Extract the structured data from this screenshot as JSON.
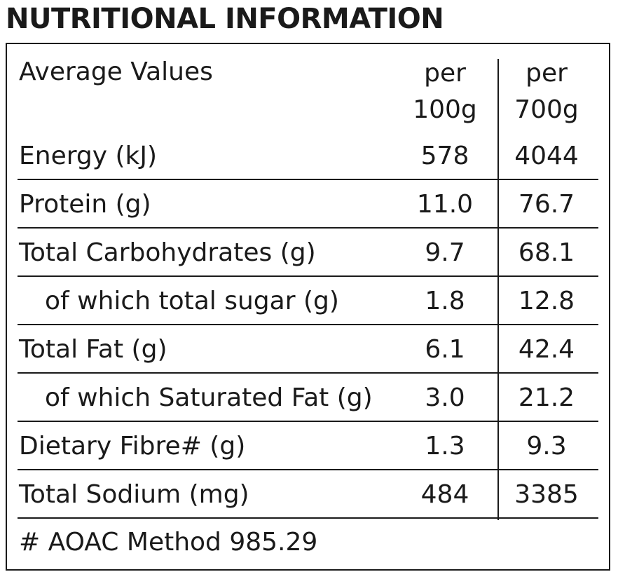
{
  "title": "NUTRITIONAL INFORMATION",
  "header": {
    "label": "Average Values",
    "col1_line1": "per",
    "col1_line2": "100g",
    "col2_line1": "per",
    "col2_line2": "700g"
  },
  "rows": [
    {
      "label": "Energy (kJ)",
      "per100g": "578",
      "per700g": "4044"
    },
    {
      "label": "Protein (g)",
      "per100g": "11.0",
      "per700g": "76.7"
    },
    {
      "label": "Total Carbohydrates (g)",
      "per100g": "9.7",
      "per700g": "68.1"
    },
    {
      "label": "of which total sugar (g)",
      "per100g": "1.8",
      "per700g": "12.8"
    },
    {
      "label": "Total Fat (g)",
      "per100g": "6.1",
      "per700g": "42.4"
    },
    {
      "label": "of which Saturated Fat (g)",
      "per100g": "3.0",
      "per700g": "21.2"
    },
    {
      "label": "Dietary Fibre# (g)",
      "per100g": "1.3",
      "per700g": "9.3"
    },
    {
      "label": "Total Sodium (mg)",
      "per100g": "484",
      "per700g": "3385"
    }
  ],
  "footnote": "# AOAC Method 985.29"
}
